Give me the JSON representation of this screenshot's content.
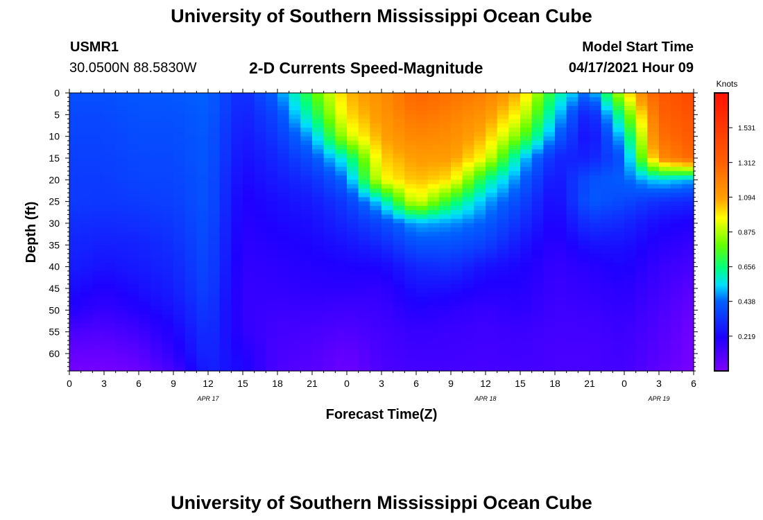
{
  "header": {
    "title": "University of Southern Mississippi Ocean Cube",
    "station_id": "USMR1",
    "station_coords": "30.0500N  88.5830W",
    "subtitle": "2-D Currents Speed-Magnitude",
    "model_start_label": "Model Start Time",
    "model_start_value": "04/17/2021 Hour 09"
  },
  "footer": {
    "title": "University of Southern Mississippi Ocean Cube"
  },
  "colors": {
    "background": "#ffffff",
    "axis": "#000000"
  },
  "chart_data": {
    "type": "heatmap",
    "title": "2-D Currents Speed-Magnitude",
    "xlabel": "Forecast Time(Z)",
    "ylabel": "Depth (ft)",
    "xlim": [
      0,
      54
    ],
    "ylim": [
      64,
      0
    ],
    "x_tick_values": [
      0,
      3,
      6,
      9,
      12,
      15,
      18,
      21,
      24,
      27,
      30,
      33,
      36,
      39,
      42,
      45,
      48,
      51,
      54
    ],
    "x_tick_labels": [
      "0",
      "3",
      "6",
      "9",
      "12",
      "15",
      "18",
      "21",
      "0",
      "3",
      "6",
      "9",
      "12",
      "15",
      "18",
      "21",
      "0",
      "3",
      "6"
    ],
    "date_labels": [
      {
        "x": 12,
        "label": "APR 17"
      },
      {
        "x": 36,
        "label": "APR 18"
      },
      {
        "x": 51,
        "label": "APR 19"
      }
    ],
    "y_ticks": [
      0,
      5,
      10,
      15,
      20,
      25,
      30,
      35,
      40,
      45,
      50,
      55,
      60
    ],
    "colorbar": {
      "label": "Knots",
      "range": [
        0,
        1.75
      ],
      "ticks": [
        0.219,
        0.438,
        0.656,
        0.875,
        1.094,
        1.312,
        1.531
      ],
      "tick_labels": [
        "0.219",
        "0.438",
        "0.656",
        "0.875",
        "1.094",
        "1.312",
        "1.531"
      ]
    },
    "time_hours": [
      0,
      3,
      6,
      9,
      12,
      15,
      18,
      21,
      24,
      27,
      30,
      33,
      36,
      39,
      42,
      45,
      48,
      51,
      54
    ],
    "depths_ft": [
      0,
      5,
      10,
      15,
      20,
      25,
      30,
      35,
      40,
      45,
      50,
      55,
      60,
      64
    ],
    "speed_knots": [
      [
        0.4,
        0.38,
        0.37,
        0.36,
        0.35,
        0.35,
        0.32,
        0.3,
        0.28,
        0.24,
        0.2,
        0.12,
        0.06,
        0.03
      ],
      [
        0.4,
        0.38,
        0.37,
        0.36,
        0.35,
        0.34,
        0.31,
        0.28,
        0.25,
        0.2,
        0.16,
        0.1,
        0.05,
        0.02
      ],
      [
        0.42,
        0.4,
        0.39,
        0.38,
        0.37,
        0.35,
        0.32,
        0.29,
        0.27,
        0.24,
        0.2,
        0.14,
        0.08,
        0.04
      ],
      [
        0.42,
        0.4,
        0.39,
        0.38,
        0.37,
        0.36,
        0.34,
        0.32,
        0.3,
        0.28,
        0.25,
        0.21,
        0.18,
        0.12
      ],
      [
        0.44,
        0.43,
        0.42,
        0.42,
        0.41,
        0.41,
        0.4,
        0.39,
        0.38,
        0.37,
        0.35,
        0.33,
        0.31,
        0.29
      ],
      [
        0.3,
        0.28,
        0.26,
        0.24,
        0.22,
        0.2,
        0.19,
        0.18,
        0.17,
        0.16,
        0.16,
        0.17,
        0.2,
        0.22
      ],
      [
        0.45,
        0.38,
        0.34,
        0.3,
        0.27,
        0.24,
        0.22,
        0.2,
        0.18,
        0.17,
        0.15,
        0.13,
        0.12,
        0.11
      ],
      [
        0.75,
        0.65,
        0.5,
        0.4,
        0.32,
        0.27,
        0.24,
        0.22,
        0.2,
        0.18,
        0.15,
        0.12,
        0.1,
        0.09
      ],
      [
        1.05,
        1.0,
        0.9,
        0.6,
        0.45,
        0.35,
        0.3,
        0.25,
        0.21,
        0.18,
        0.14,
        0.1,
        0.06,
        0.04
      ],
      [
        1.15,
        1.12,
        1.08,
        1.02,
        0.95,
        0.55,
        0.38,
        0.3,
        0.22,
        0.17,
        0.15,
        0.13,
        0.12,
        0.11
      ],
      [
        1.3,
        1.25,
        1.18,
        1.1,
        1.05,
        0.95,
        0.5,
        0.4,
        0.3,
        0.25,
        0.2,
        0.16,
        0.14,
        0.13
      ],
      [
        1.25,
        1.2,
        1.15,
        1.1,
        1.0,
        0.7,
        0.48,
        0.4,
        0.32,
        0.24,
        0.18,
        0.15,
        0.14,
        0.13
      ],
      [
        1.2,
        1.12,
        1.05,
        0.95,
        0.65,
        0.5,
        0.43,
        0.36,
        0.25,
        0.2,
        0.16,
        0.14,
        0.13,
        0.12
      ],
      [
        1.05,
        0.95,
        0.8,
        0.55,
        0.45,
        0.38,
        0.32,
        0.26,
        0.22,
        0.2,
        0.18,
        0.15,
        0.14,
        0.13
      ],
      [
        0.65,
        0.55,
        0.45,
        0.3,
        0.25,
        0.22,
        0.2,
        0.18,
        0.16,
        0.15,
        0.14,
        0.13,
        0.12,
        0.12
      ],
      [
        0.42,
        0.25,
        0.22,
        0.28,
        0.4,
        0.42,
        0.33,
        0.25,
        0.19,
        0.17,
        0.15,
        0.13,
        0.12,
        0.12
      ],
      [
        0.95,
        0.72,
        0.55,
        0.42,
        0.43,
        0.38,
        0.3,
        0.25,
        0.22,
        0.19,
        0.17,
        0.15,
        0.14,
        0.13
      ],
      [
        1.35,
        1.3,
        1.25,
        1.15,
        0.55,
        0.32,
        0.23,
        0.19,
        0.16,
        0.14,
        0.12,
        0.1,
        0.09,
        0.07
      ],
      [
        1.45,
        1.4,
        1.35,
        1.3,
        0.5,
        0.3,
        0.2,
        0.16,
        0.12,
        0.08,
        0.05,
        0.03,
        0.02,
        0.01
      ]
    ]
  }
}
